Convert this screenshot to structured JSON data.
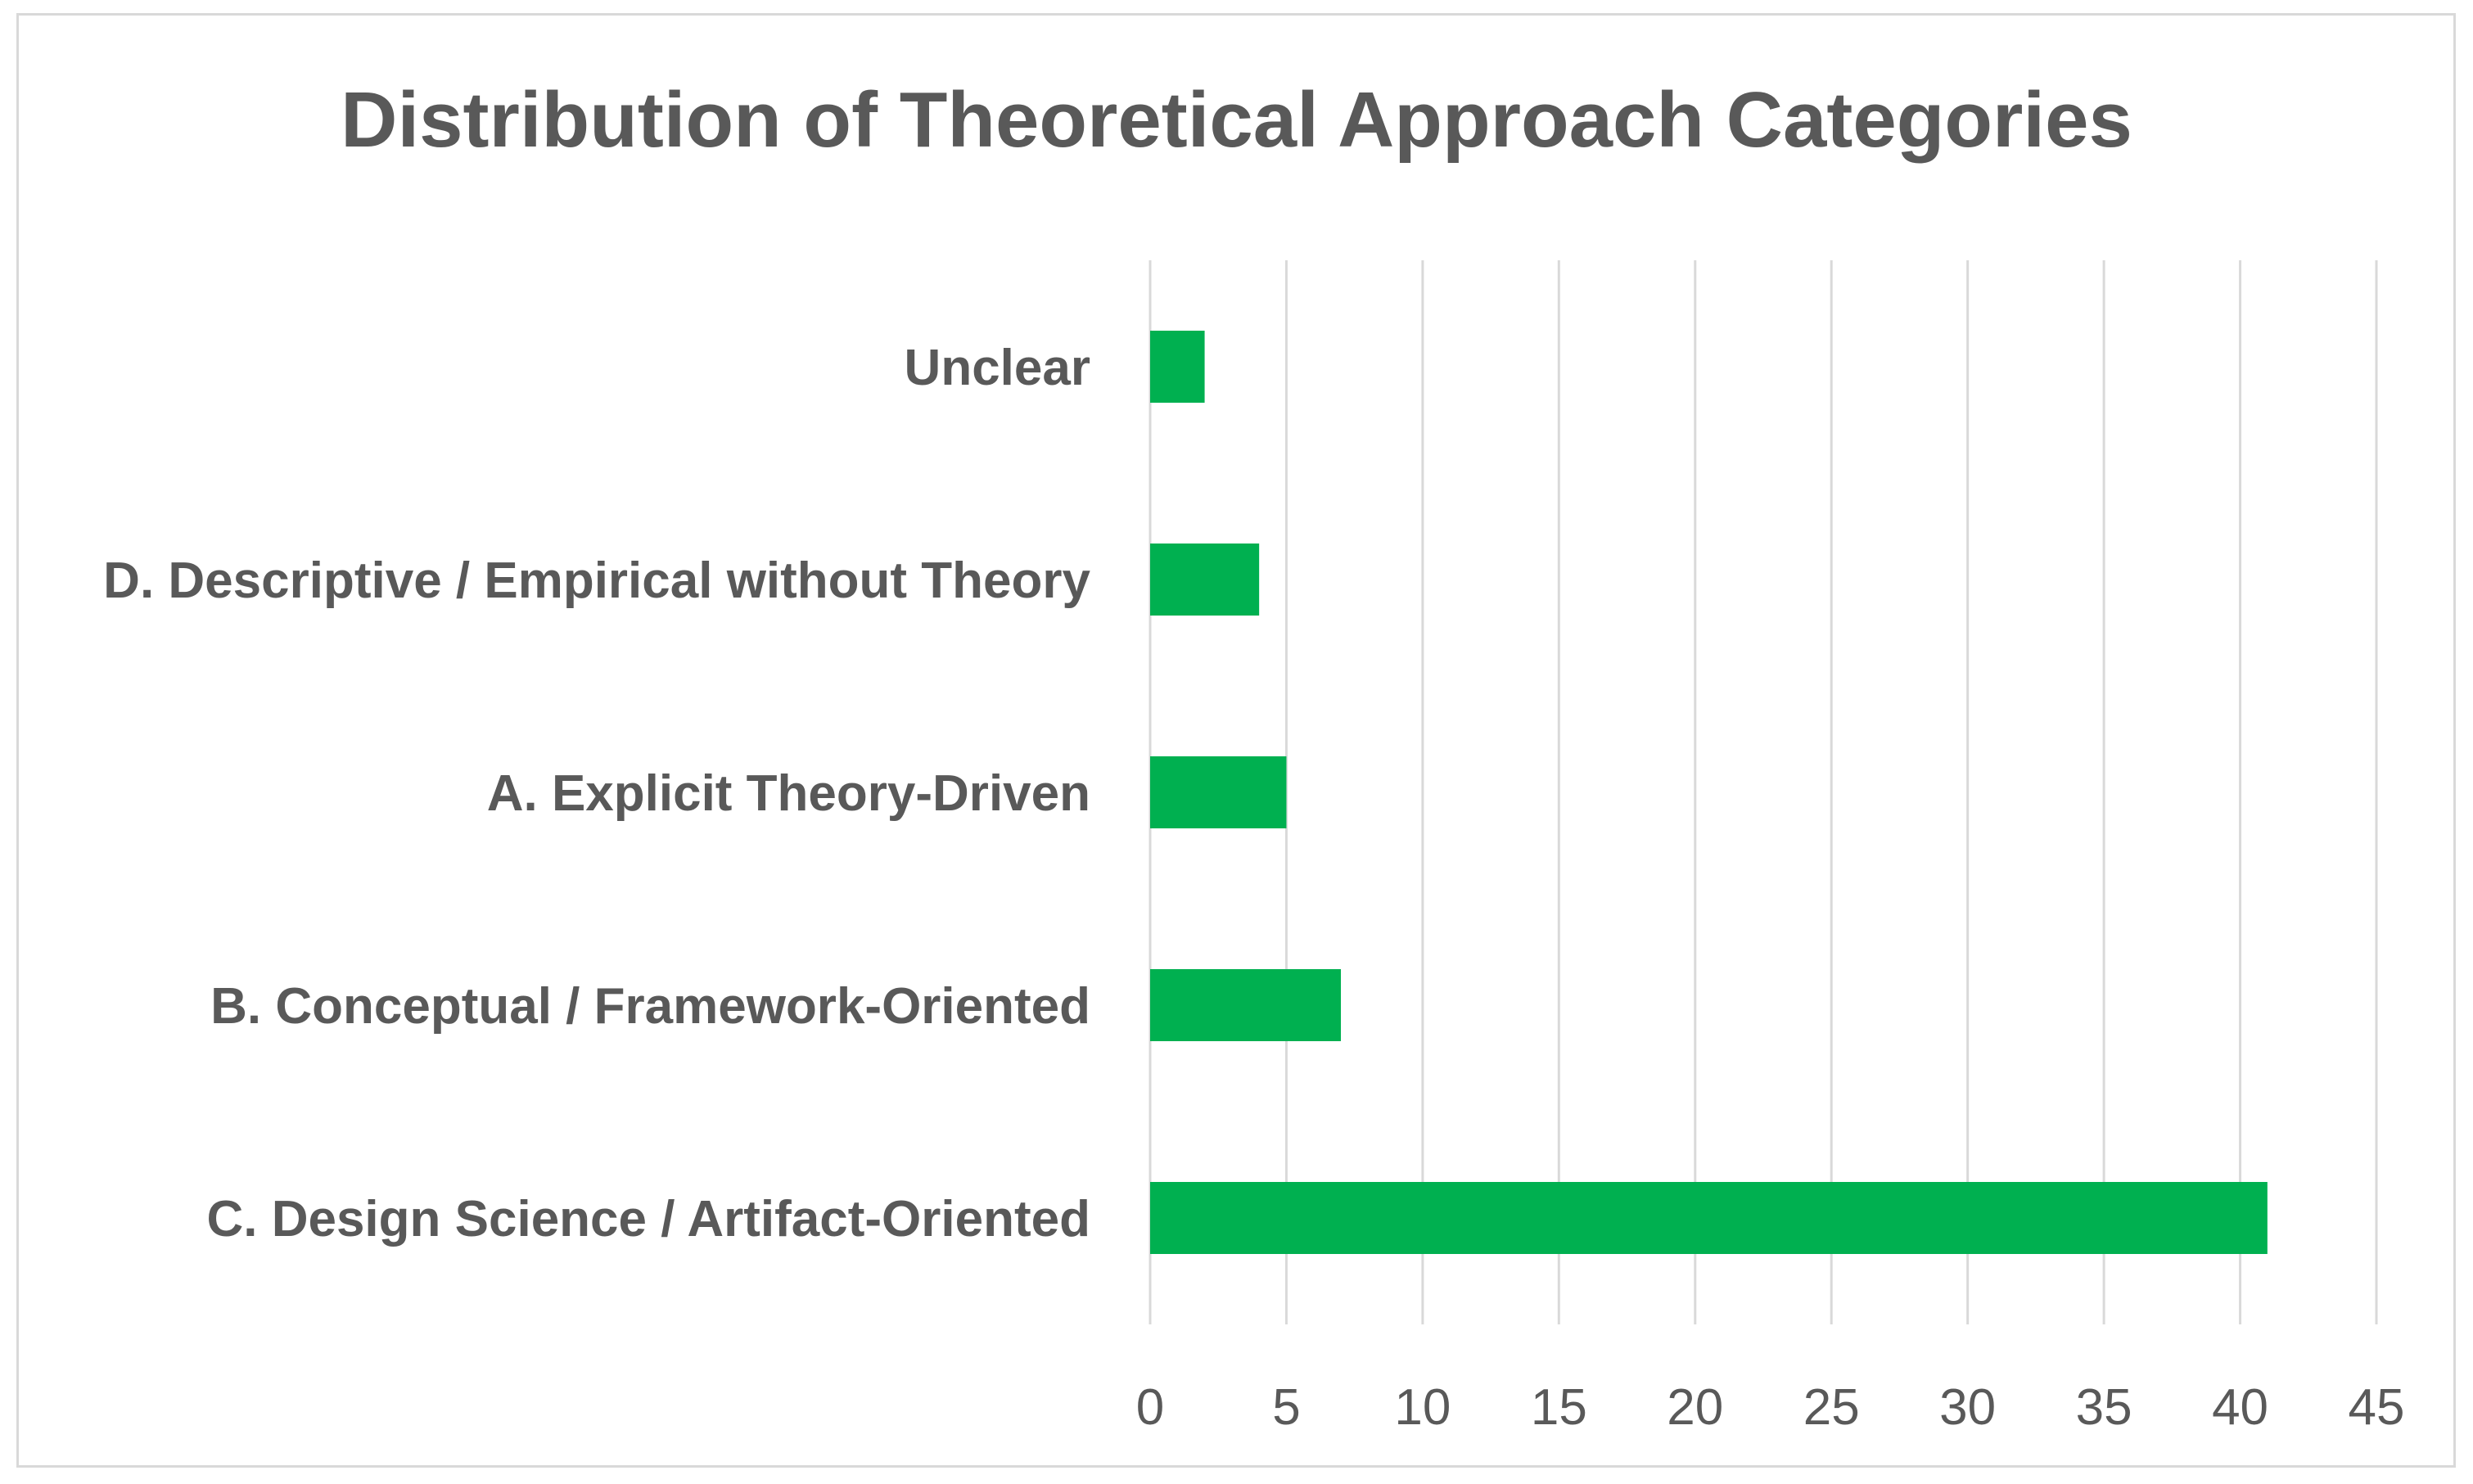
{
  "chart_data": {
    "type": "bar",
    "orientation": "horizontal",
    "title": "Distribution of Theoretical Approach Categories",
    "xlabel": "",
    "ylabel": "",
    "categories": [
      "Unclear",
      "D. Descriptive / Empirical without Theory",
      "A. Explicit Theory-Driven",
      "B. Conceptual / Framework-Oriented",
      "C. Design Science / Artifact-Oriented"
    ],
    "values": [
      2,
      4,
      5,
      7,
      41
    ],
    "xlim": [
      0,
      45
    ],
    "xticks": [
      0,
      5,
      10,
      15,
      20,
      25,
      30,
      35,
      40,
      45
    ],
    "grid": "vertical",
    "legend": "none",
    "bar_color": "#00b050",
    "grid_color": "#d9d9d9",
    "text_color": "#595959"
  }
}
